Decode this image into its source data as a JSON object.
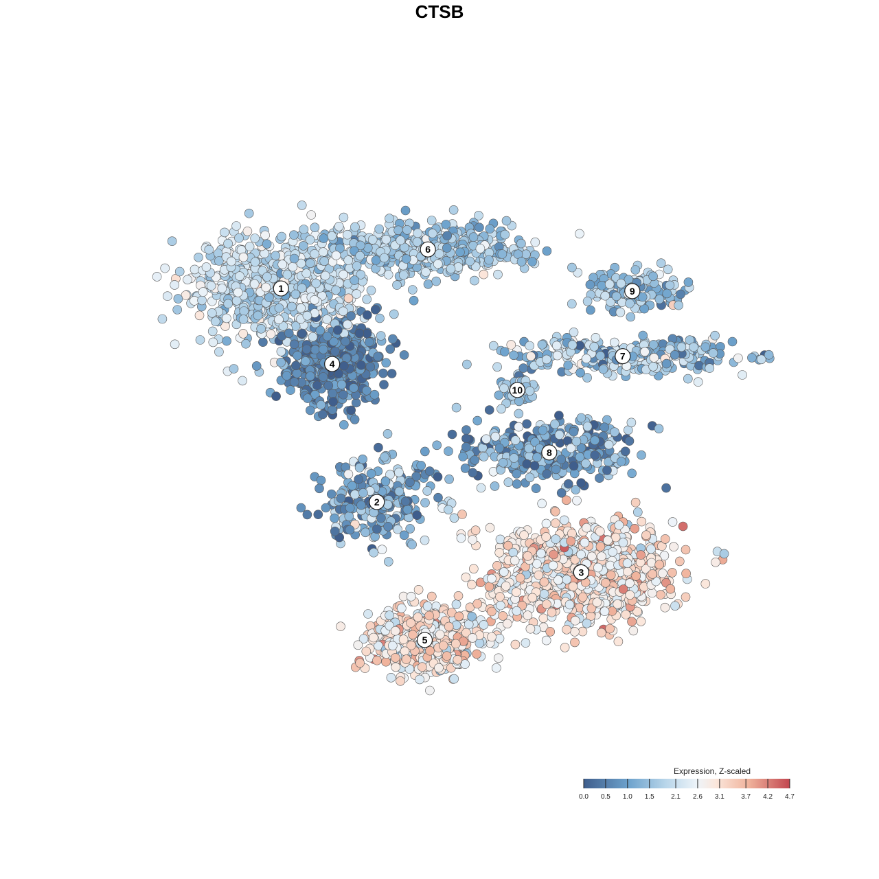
{
  "chart_data": {
    "type": "scatter",
    "title": "CTSB",
    "description_kind": "tSNE embedding of cells colored by gene expression",
    "legend": {
      "title": "Expression, Z-scaled",
      "placement": "bottom-right",
      "ticks": [
        "0.0",
        "0.5",
        "1.0",
        "1.5",
        "2.1",
        "2.6",
        "3.1",
        "3.7",
        "4.2",
        "4.7"
      ],
      "range": [
        0.0,
        4.7
      ]
    },
    "colors": {
      "low": "#3f5e8c",
      "mid_low": "#6ea3cd",
      "mid": "#e7f1f8",
      "mid_high": "#f3c3ad",
      "high": "#c2464f",
      "point_stroke": "#5a5a5a"
    },
    "clusters": [
      {
        "label": "1",
        "x": 0.225,
        "y": 0.31,
        "spread": [
          0.125,
          0.1
        ],
        "count": 700,
        "mean_expr": 1.95,
        "sd": 0.45
      },
      {
        "label": "6",
        "x": 0.455,
        "y": 0.235,
        "spread": [
          0.13,
          0.045
        ],
        "count": 600,
        "mean_expr": 1.65,
        "sd": 0.45
      },
      {
        "label": "4",
        "x": 0.305,
        "y": 0.455,
        "spread": [
          0.065,
          0.075
        ],
        "count": 500,
        "mean_expr": 0.55,
        "sd": 0.4
      },
      {
        "label": "10",
        "x": 0.595,
        "y": 0.505,
        "spread": [
          0.025,
          0.03
        ],
        "count": 45,
        "mean_expr": 1.5,
        "sd": 0.4
      },
      {
        "label": "9",
        "x": 0.775,
        "y": 0.315,
        "spread": [
          0.08,
          0.035
        ],
        "count": 140,
        "mean_expr": 1.45,
        "sd": 0.5
      },
      {
        "label": "7",
        "x": 0.76,
        "y": 0.44,
        "spread": [
          0.17,
          0.03
        ],
        "count": 280,
        "mean_expr": 1.55,
        "sd": 0.6
      },
      {
        "label": "8",
        "x": 0.645,
        "y": 0.625,
        "spread": [
          0.13,
          0.055
        ],
        "count": 300,
        "mean_expr": 1.05,
        "sd": 0.7
      },
      {
        "label": "2",
        "x": 0.375,
        "y": 0.72,
        "spread": [
          0.08,
          0.07
        ],
        "count": 240,
        "mean_expr": 1.2,
        "sd": 0.7
      },
      {
        "label": "3",
        "x": 0.695,
        "y": 0.855,
        "spread": [
          0.13,
          0.085
        ],
        "count": 900,
        "mean_expr": 2.95,
        "sd": 0.55
      },
      {
        "label": "5",
        "x": 0.45,
        "y": 0.985,
        "spread": [
          0.09,
          0.06
        ],
        "count": 450,
        "mean_expr": 2.85,
        "sd": 0.55
      }
    ]
  }
}
